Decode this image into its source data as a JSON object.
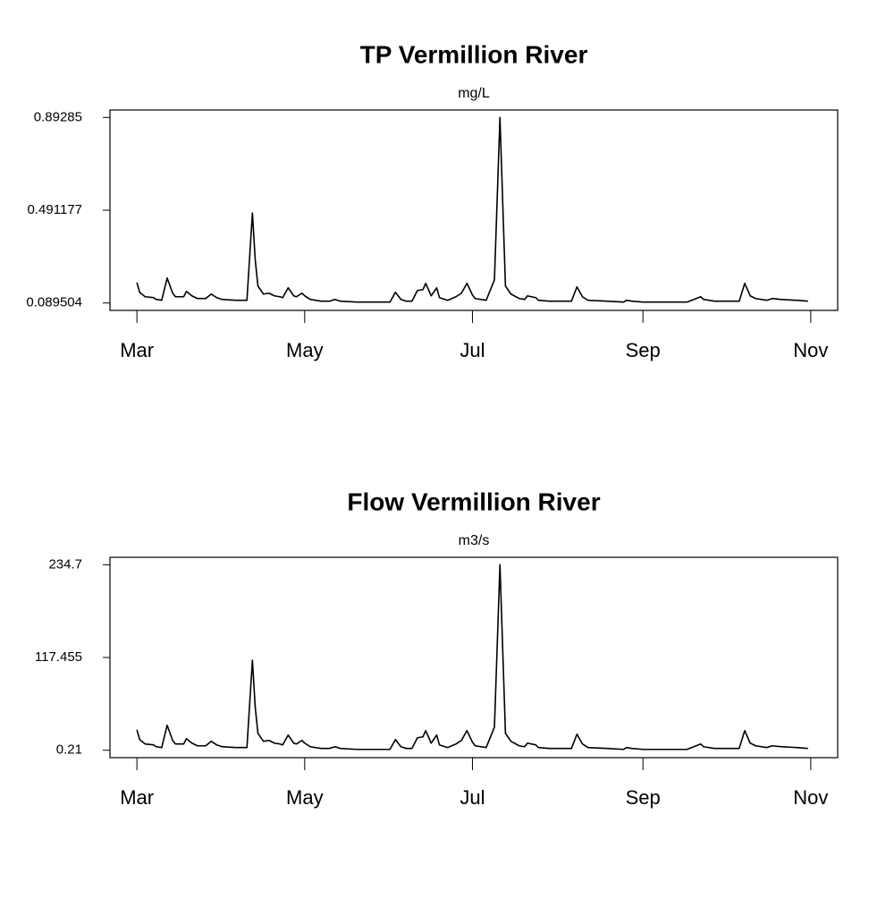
{
  "chart_data": [
    {
      "type": "line",
      "title": "TP Vermillion River",
      "subtitle": "mg/L",
      "color": "#000000",
      "x": [
        0,
        1,
        3,
        6,
        7,
        9,
        11,
        13,
        14,
        17,
        18,
        20,
        22,
        25,
        27,
        29,
        31,
        36,
        40,
        42,
        43,
        44,
        46,
        48,
        50,
        52,
        53,
        55,
        57,
        58,
        60,
        61,
        63,
        67,
        70,
        72,
        74,
        80,
        92,
        94,
        96,
        98,
        100,
        102,
        104,
        105,
        107,
        109,
        110,
        113,
        116,
        118,
        120,
        122,
        123,
        127,
        130,
        132,
        134,
        136,
        139,
        141,
        142,
        145,
        146,
        150,
        158,
        160,
        162,
        164,
        171,
        177,
        178,
        180,
        184,
        200,
        205,
        206,
        210,
        219,
        221,
        223,
        225,
        229,
        231,
        234,
        240,
        244
      ],
      "values": [
        0.1783,
        0.1358,
        0.1165,
        0.1127,
        0.105,
        0.1011,
        0.1976,
        0.132,
        0.1165,
        0.1165,
        0.1397,
        0.1204,
        0.1088,
        0.1088,
        0.1281,
        0.1127,
        0.105,
        0.1011,
        0.1011,
        0.4796,
        0.2787,
        0.1629,
        0.1281,
        0.132,
        0.1204,
        0.1165,
        0.1127,
        0.1552,
        0.1204,
        0.1165,
        0.132,
        0.1204,
        0.105,
        0.0972,
        0.0972,
        0.105,
        0.0972,
        0.0934,
        0.0934,
        0.1358,
        0.105,
        0.0972,
        0.0972,
        0.1436,
        0.1474,
        0.1745,
        0.1204,
        0.1552,
        0.1127,
        0.1011,
        0.1165,
        0.132,
        0.1745,
        0.1243,
        0.1088,
        0.1011,
        0.1899,
        0.89285,
        0.1629,
        0.1281,
        0.1088,
        0.105,
        0.1204,
        0.1127,
        0.1011,
        0.0972,
        0.0972,
        0.159,
        0.1165,
        0.1011,
        0.0972,
        0.0934,
        0.1011,
        0.0972,
        0.0934,
        0.0934,
        0.1165,
        0.105,
        0.0972,
        0.0972,
        0.1745,
        0.1204,
        0.1088,
        0.1011,
        0.1088,
        0.105,
        0.1011,
        0.0972
      ],
      "xlim": [
        -9.8,
        254.8
      ],
      "xticks": [
        {
          "value": 0,
          "label": "Mar"
        },
        {
          "value": 61,
          "label": "May"
        },
        {
          "value": 122,
          "label": "Jul"
        },
        {
          "value": 184,
          "label": "Sep"
        },
        {
          "value": 245,
          "label": "Nov"
        }
      ],
      "ylim": [
        0.0574,
        0.925
      ],
      "yticks": [
        0.089504,
        0.491177,
        0.89285
      ]
    },
    {
      "type": "line",
      "title": "Flow Vermillion River",
      "subtitle": "m3/s",
      "color": "#000000",
      "x": [
        0,
        1,
        3,
        6,
        7,
        9,
        11,
        13,
        14,
        17,
        18,
        20,
        22,
        25,
        27,
        29,
        31,
        36,
        40,
        42,
        43,
        44,
        46,
        48,
        50,
        52,
        53,
        55,
        57,
        58,
        60,
        61,
        63,
        67,
        70,
        72,
        74,
        80,
        92,
        94,
        96,
        98,
        100,
        102,
        104,
        105,
        107,
        109,
        110,
        113,
        116,
        118,
        120,
        122,
        123,
        127,
        130,
        132,
        134,
        136,
        139,
        141,
        142,
        145,
        146,
        150,
        158,
        160,
        162,
        164,
        171,
        177,
        178,
        180,
        184,
        200,
        205,
        206,
        210,
        219,
        221,
        223,
        225,
        229,
        231,
        234,
        240,
        244
      ],
      "values": [
        26.1,
        13.7,
        8.1,
        7.0,
        4.7,
        3.6,
        31.8,
        12.6,
        8.1,
        8.1,
        14.9,
        9.2,
        5.8,
        5.8,
        11.5,
        7.0,
        4.7,
        3.6,
        3.6,
        114.0,
        55.4,
        21.6,
        11.5,
        12.6,
        9.2,
        8.1,
        7.0,
        19.4,
        9.2,
        8.1,
        12.6,
        9.2,
        4.7,
        2.5,
        2.5,
        4.7,
        2.5,
        1.3,
        1.3,
        13.7,
        4.7,
        2.5,
        2.5,
        16.0,
        17.1,
        25.0,
        9.2,
        19.4,
        7.0,
        3.6,
        8.1,
        12.6,
        25.0,
        10.4,
        5.8,
        3.6,
        29.5,
        234.7,
        21.6,
        11.5,
        5.8,
        4.7,
        9.2,
        7.0,
        3.6,
        2.5,
        2.5,
        20.5,
        8.1,
        3.6,
        2.5,
        1.3,
        3.6,
        2.5,
        1.3,
        1.3,
        8.1,
        4.7,
        2.5,
        2.5,
        25.0,
        9.2,
        5.8,
        3.6,
        5.8,
        4.7,
        3.6,
        2.5
      ],
      "xlim": [
        -9.8,
        254.8
      ],
      "xticks": [
        {
          "value": 0,
          "label": "Mar"
        },
        {
          "value": 61,
          "label": "May"
        },
        {
          "value": 122,
          "label": "Jul"
        },
        {
          "value": 184,
          "label": "Sep"
        },
        {
          "value": 245,
          "label": "Nov"
        }
      ],
      "ylim": [
        -9.17,
        244.08
      ],
      "yticks": [
        0.21,
        117.455,
        234.7
      ]
    }
  ]
}
